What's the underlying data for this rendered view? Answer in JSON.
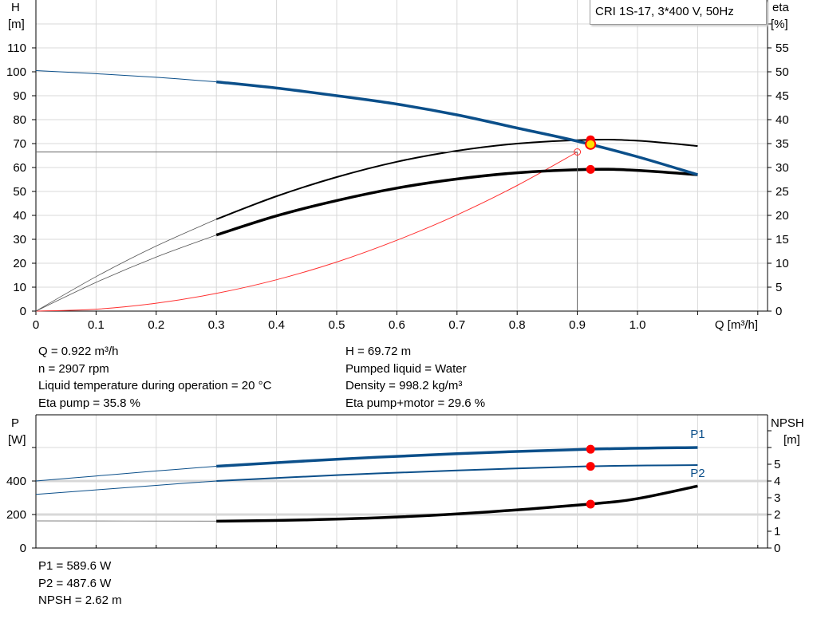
{
  "legend": "CRI 1S-17, 3*400 V, 50Hz",
  "chart_data": [
    {
      "type": "line",
      "title": "",
      "xlabel": "Q [m³/h]",
      "ylabel_left": [
        "H",
        "[m]"
      ],
      "ylabel_right": [
        "eta",
        "[%]"
      ],
      "xlim": [
        0,
        1.2
      ],
      "ylim_left": [
        0,
        120
      ],
      "ylim_right": [
        0,
        60
      ],
      "grid": true,
      "x_ticks": [
        "0",
        "0.1",
        "0.2",
        "0.3",
        "0.4",
        "0.5",
        "0.6",
        "0.7",
        "0.8",
        "0.9",
        "1.0"
      ],
      "y_left_ticks": [
        0,
        10,
        20,
        30,
        40,
        50,
        60,
        70,
        80,
        90,
        100,
        110
      ],
      "y_right_ticks": [
        0,
        5,
        10,
        15,
        20,
        25,
        30,
        35,
        40,
        45,
        50,
        55
      ],
      "series": [
        {
          "key": "H",
          "axis": "left",
          "color": "#0b4f8a",
          "points": [
            [
              0,
              100.5
            ],
            [
              0.1,
              99.2
            ],
            [
              0.2,
              97.7
            ],
            [
              0.3,
              95.8
            ],
            [
              0.4,
              93.2
            ],
            [
              0.5,
              90
            ],
            [
              0.6,
              86.5
            ],
            [
              0.7,
              82
            ],
            [
              0.8,
              76.5
            ],
            [
              0.9,
              71
            ],
            [
              1.0,
              64.5
            ],
            [
              1.1,
              57
            ]
          ]
        },
        {
          "key": "eta_pump",
          "axis": "right",
          "color": "#000",
          "points": [
            [
              0,
              0
            ],
            [
              0.1,
              7.2
            ],
            [
              0.2,
              13.6
            ],
            [
              0.3,
              19.2
            ],
            [
              0.4,
              24
            ],
            [
              0.5,
              28
            ],
            [
              0.6,
              31.2
            ],
            [
              0.7,
              33.5
            ],
            [
              0.8,
              35
            ],
            [
              0.92,
              35.8
            ],
            [
              1.0,
              35.6
            ],
            [
              1.1,
              34.5
            ]
          ]
        },
        {
          "key": "eta_pump_motor",
          "axis": "right",
          "color": "#000",
          "points": [
            [
              0,
              0
            ],
            [
              0.1,
              6
            ],
            [
              0.2,
              11.3
            ],
            [
              0.3,
              15.9
            ],
            [
              0.4,
              19.9
            ],
            [
              0.5,
              23.1
            ],
            [
              0.6,
              25.7
            ],
            [
              0.7,
              27.6
            ],
            [
              0.8,
              28.9
            ],
            [
              0.92,
              29.6
            ],
            [
              1.0,
              29.4
            ],
            [
              1.1,
              28.5
            ]
          ]
        },
        {
          "key": "system",
          "axis": "left",
          "color": "#ff3030",
          "points": [
            [
              0,
              0
            ],
            [
              0.1,
              0.8
            ],
            [
              0.2,
              3.3
            ],
            [
              0.3,
              7.4
            ],
            [
              0.4,
              13.1
            ],
            [
              0.5,
              20.5
            ],
            [
              0.6,
              29.6
            ],
            [
              0.7,
              40.2
            ],
            [
              0.8,
              52.5
            ],
            [
              0.9,
              66.5
            ]
          ]
        }
      ],
      "operating_point": {
        "Q": 0.922,
        "H": 69.72,
        "eta_pump": 35.8,
        "eta_pump_motor": 29.6
      },
      "reference_point": {
        "Q": 0.9,
        "H": 66.5
      }
    },
    {
      "type": "line",
      "title": "",
      "ylabel_left": [
        "P",
        "[W]"
      ],
      "ylabel_right": [
        "NPSH",
        "[m]"
      ],
      "xlim": [
        0,
        1.2
      ],
      "ylim_left": [
        0,
        770
      ],
      "ylim_right": [
        0,
        7.7
      ],
      "grid": true,
      "y_left_ticks": [
        0,
        200,
        400
      ],
      "y_right_ticks": [
        0,
        1,
        2,
        3,
        4,
        5
      ],
      "series": [
        {
          "key": "P1",
          "name": "P1",
          "axis": "left",
          "color": "#0b4f8a",
          "points": [
            [
              0,
              400
            ],
            [
              0.1,
              430
            ],
            [
              0.2,
              460
            ],
            [
              0.3,
              488
            ],
            [
              0.5,
              530
            ],
            [
              0.7,
              563
            ],
            [
              0.92,
              590
            ],
            [
              1.1,
              600
            ]
          ]
        },
        {
          "key": "P2",
          "name": "P2",
          "axis": "left",
          "color": "#0b4f8a",
          "points": [
            [
              0,
              320
            ],
            [
              0.1,
              347
            ],
            [
              0.2,
              374
            ],
            [
              0.3,
              400
            ],
            [
              0.5,
              435
            ],
            [
              0.7,
              463
            ],
            [
              0.92,
              488
            ],
            [
              1.1,
              495
            ]
          ]
        },
        {
          "key": "NPSH",
          "axis": "right",
          "color": "#000",
          "points": [
            [
              0,
              1.62
            ],
            [
              0.3,
              1.6
            ],
            [
              0.45,
              1.68
            ],
            [
              0.6,
              1.85
            ],
            [
              0.75,
              2.15
            ],
            [
              0.92,
              2.62
            ],
            [
              1.0,
              2.95
            ],
            [
              1.1,
              3.7
            ]
          ]
        }
      ],
      "operating_point": {
        "Q": 0.922,
        "P1": 589.6,
        "P2": 487.6,
        "NPSH": 2.62
      }
    }
  ],
  "results_left": [
    "Q = 0.922 m³/h",
    "n = 2907 rpm",
    "Liquid temperature during operation = 20 °C",
    "Eta pump = 35.8 %"
  ],
  "results_right": [
    "H = 69.72 m",
    "Pumped liquid = Water",
    "Density = 998.2 kg/m³",
    "Eta pump+motor = 29.6 %"
  ],
  "results_power": [
    "P1 = 589.6 W",
    "P2 = 487.6 W",
    "NPSH = 2.62 m"
  ]
}
